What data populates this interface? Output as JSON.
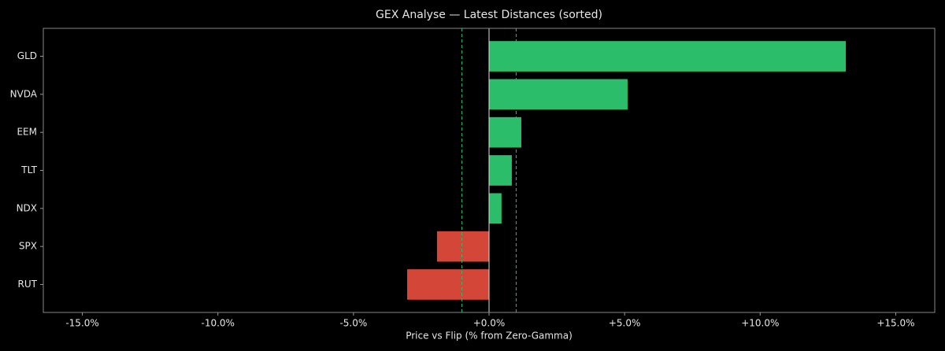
{
  "chart_data": {
    "type": "barh",
    "title": "GEX Analyse — Latest Distances (sorted)",
    "x_label": "Price vs Flip (% from Zero-Gamma)",
    "categories": [
      "GLD",
      "NVDA",
      "EEM",
      "TLT",
      "NDX",
      "SPX",
      "RUT"
    ],
    "values": [
      13.16,
      5.11,
      1.19,
      0.84,
      0.46,
      -1.92,
      -3.02
    ],
    "colors": [
      "#2bbd6a",
      "#2bbd6a",
      "#2bbd6a",
      "#2bbd6a",
      "#2bbd6a",
      "#d44638",
      "#d44638"
    ],
    "xlim": [
      -16.44,
      16.44
    ],
    "xticks": [
      {
        "value": -15,
        "label": "-15.0%"
      },
      {
        "value": -10,
        "label": "-10.0%"
      },
      {
        "value": -5,
        "label": "-5.0%"
      },
      {
        "value": 0,
        "label": "+0.0%"
      },
      {
        "value": 5,
        "label": "+5.0%"
      },
      {
        "value": 10,
        "label": "+10.0%"
      },
      {
        "value": 15,
        "label": "+15.0%"
      }
    ],
    "thresholds": [
      -1,
      1
    ],
    "threshold_color": "#2bbd6a",
    "zero_line": true
  }
}
